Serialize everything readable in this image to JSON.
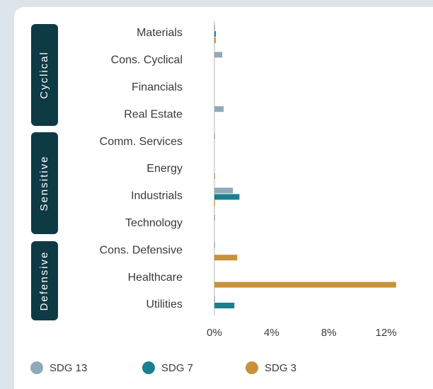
{
  "chart_data": {
    "type": "bar",
    "orientation": "horizontal",
    "groups": [
      "Cyclical",
      "Sensitive",
      "Defensive"
    ],
    "categories": [
      "Materials",
      "Cons. Cyclical",
      "Financials",
      "Real Estate",
      "Comm. Services",
      "Energy",
      "Industrials",
      "Technology",
      "Cons. Defensive",
      "Healthcare",
      "Utilities"
    ],
    "series": [
      {
        "name": "SDG 13",
        "color": "#8fa9b8",
        "values": [
          0.05,
          0.55,
          0,
          0.65,
          0.05,
          0,
          1.3,
          0.05,
          0.05,
          0,
          0.05
        ]
      },
      {
        "name": "SDG 7",
        "color": "#1a7f8e",
        "values": [
          0.1,
          0,
          0,
          0,
          0,
          0,
          1.75,
          0,
          0,
          0,
          1.4
        ]
      },
      {
        "name": "SDG 3",
        "color": "#c9913a",
        "values": [
          0.1,
          0,
          0,
          0,
          0,
          0.05,
          0.05,
          0,
          1.6,
          12.7,
          0
        ]
      }
    ],
    "xlim": [
      0,
      13.5
    ],
    "xticks": [
      {
        "value": 0,
        "label": "0%"
      },
      {
        "value": 4,
        "label": "4%"
      },
      {
        "value": 8,
        "label": "8%"
      },
      {
        "value": 12,
        "label": "12%"
      }
    ],
    "legend": "bottom"
  }
}
